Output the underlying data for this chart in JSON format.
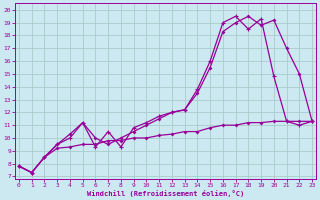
{
  "xlabel": "Windchill (Refroidissement éolien,°C)",
  "background_color": "#cce8f0",
  "grid_color": "#aacccc",
  "line_color": "#990099",
  "x_ticks": [
    0,
    1,
    2,
    3,
    4,
    5,
    6,
    7,
    8,
    9,
    10,
    11,
    12,
    13,
    14,
    15,
    16,
    17,
    18,
    19,
    20,
    21,
    22,
    23
  ],
  "y_ticks": [
    7,
    8,
    9,
    10,
    11,
    12,
    13,
    14,
    15,
    16,
    17,
    18,
    19,
    20
  ],
  "ylim": [
    6.8,
    20.5
  ],
  "xlim": [
    -0.3,
    23.3
  ],
  "series1_x": [
    0,
    1,
    2,
    3,
    4,
    5,
    6,
    7,
    8,
    9,
    10,
    11,
    12,
    13,
    14,
    15,
    16,
    17,
    18,
    19,
    20,
    21,
    22,
    23
  ],
  "series1_y": [
    7.8,
    7.3,
    8.5,
    9.5,
    10.0,
    11.2,
    9.3,
    10.5,
    9.3,
    10.8,
    11.2,
    11.7,
    12.0,
    12.2,
    13.8,
    16.0,
    19.0,
    19.5,
    18.5,
    19.3,
    14.8,
    11.3,
    11.0,
    11.3
  ],
  "series2_x": [
    0,
    1,
    2,
    3,
    4,
    5,
    6,
    7,
    8,
    9,
    10,
    11,
    12,
    13,
    14,
    15,
    16,
    17,
    18,
    19,
    20,
    21,
    22,
    23
  ],
  "series2_y": [
    7.8,
    7.3,
    8.5,
    9.5,
    10.3,
    11.2,
    10.0,
    9.5,
    10.0,
    10.5,
    11.0,
    11.5,
    12.0,
    12.2,
    13.5,
    15.5,
    18.3,
    19.0,
    19.5,
    18.8,
    19.2,
    17.0,
    15.0,
    11.3
  ],
  "series3_x": [
    0,
    1,
    2,
    3,
    4,
    5,
    6,
    7,
    8,
    9,
    10,
    11,
    12,
    13,
    14,
    15,
    16,
    17,
    18,
    19,
    20,
    21,
    22,
    23
  ],
  "series3_y": [
    7.8,
    7.3,
    8.5,
    9.2,
    9.3,
    9.5,
    9.5,
    9.8,
    9.8,
    10.0,
    10.0,
    10.2,
    10.3,
    10.5,
    10.5,
    10.8,
    11.0,
    11.0,
    11.2,
    11.2,
    11.3,
    11.3,
    11.3,
    11.3
  ]
}
